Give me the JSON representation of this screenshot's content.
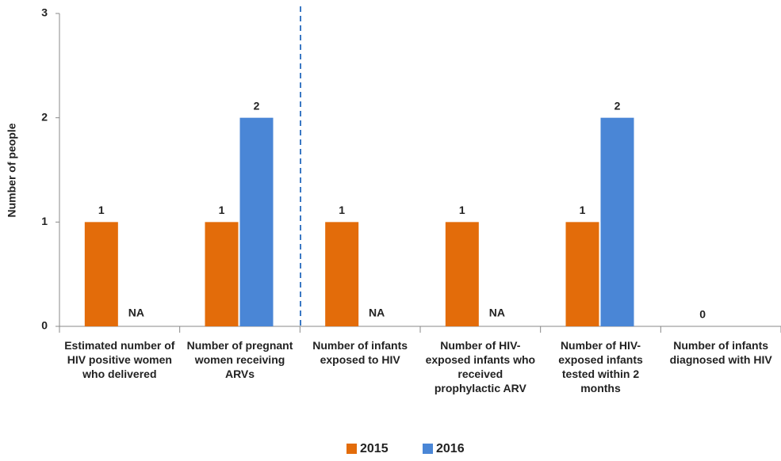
{
  "chart_data": {
    "type": "bar",
    "y_label": "Number of people",
    "categories": [
      "Estimated number of HIV positive women who delivered",
      "Number of pregnant women receiving ARVs",
      "Number of infants exposed to HIV",
      "Number of HIV-exposed infants who received prophylactic ARV",
      "Number of HIV-exposed infants tested within 2 months",
      "Number of infants diagnosed with HIV"
    ],
    "series": [
      {
        "name": "2015",
        "color": "#e36c0a",
        "values": [
          1,
          1,
          1,
          1,
          1,
          0
        ],
        "value_labels": [
          "1",
          "1",
          "1",
          "1",
          "1",
          "0"
        ]
      },
      {
        "name": "2016",
        "color": "#4a86d6",
        "values": [
          null,
          2,
          null,
          null,
          2,
          null
        ],
        "value_labels": [
          "NA",
          "2",
          "NA",
          "NA",
          "2",
          null
        ]
      }
    ],
    "ylim": [
      0,
      3
    ],
    "yticks": [
      0,
      1,
      2,
      3
    ],
    "grid": false,
    "legend": "bottom"
  }
}
